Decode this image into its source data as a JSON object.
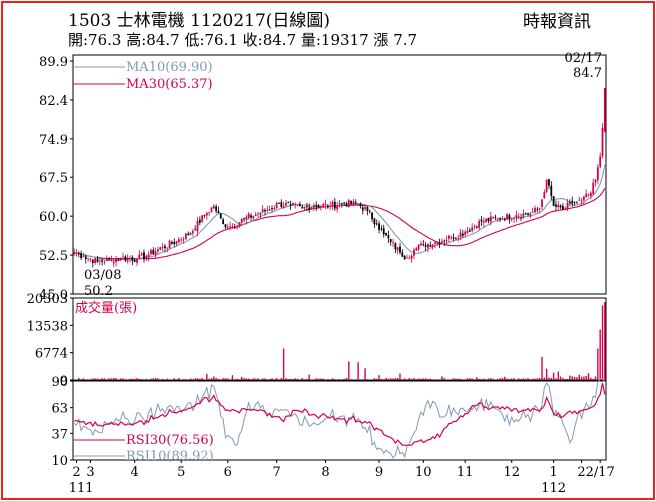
{
  "header": {
    "stock_code": "1503",
    "stock_name": "士林電機",
    "chart_date": "1120217(日線圖)",
    "source": "時報資訊",
    "stats": "開:76.3 高:84.7 低:76.1 收:84.7 量:19317 漲 7.7"
  },
  "colors": {
    "frame": "#e8231c",
    "up": "#d6004c",
    "down": "#000000",
    "ma10": "#7f9bb3",
    "ma30": "#d6004c",
    "volume": "#d6004c",
    "rsi30": "#d6004c",
    "rsi10": "#7f9bb3"
  },
  "chart_data": [
    {
      "type": "candlestick",
      "legend": [
        {
          "text": "MA10(69.90)",
          "color": "#7f9bb3"
        },
        {
          "text": "MA30(65.37)",
          "color": "#d6004c"
        }
      ],
      "yticks": [
        "89.9",
        "82.4",
        "74.9",
        "67.5",
        "60.0",
        "52.5",
        "45.0"
      ],
      "ylim": [
        45.0,
        89.9
      ],
      "annotations": [
        {
          "text": "02/17",
          "value": "84.7",
          "at": "last-high"
        },
        {
          "text": "03/08",
          "value": "50.2",
          "at": "low"
        }
      ],
      "anchors_close": [
        [
          0,
          53.0
        ],
        [
          4,
          52.3
        ],
        [
          10,
          51.2
        ],
        [
          15,
          51.6
        ],
        [
          20,
          52.0
        ],
        [
          27,
          51.8
        ],
        [
          32,
          52.6
        ],
        [
          38,
          54.0
        ],
        [
          44,
          55.2
        ],
        [
          50,
          56.8
        ],
        [
          56,
          60.2
        ],
        [
          60,
          62.0
        ],
        [
          64,
          58.5
        ],
        [
          68,
          58.0
        ],
        [
          73,
          59.5
        ],
        [
          78,
          60.3
        ],
        [
          83,
          61.2
        ],
        [
          88,
          62.4
        ],
        [
          93,
          62.0
        ],
        [
          98,
          61.5
        ],
        [
          103,
          62.1
        ],
        [
          110,
          62.0
        ],
        [
          116,
          62.5
        ],
        [
          122,
          62.3
        ],
        [
          126,
          61.0
        ],
        [
          130,
          58.5
        ],
        [
          133,
          56.5
        ],
        [
          136,
          55.0
        ],
        [
          140,
          53.0
        ],
        [
          143,
          52.0
        ],
        [
          146,
          53.5
        ],
        [
          150,
          54.5
        ],
        [
          156,
          55.0
        ],
        [
          162,
          56.0
        ],
        [
          168,
          57.0
        ],
        [
          175,
          59.0
        ],
        [
          182,
          59.6
        ],
        [
          190,
          60.2
        ],
        [
          196,
          60.5
        ],
        [
          200,
          61.5
        ],
        [
          203,
          67.0
        ],
        [
          206,
          62.0
        ],
        [
          210,
          61.3
        ],
        [
          214,
          62.5
        ],
        [
          218,
          63.0
        ],
        [
          222,
          64.5
        ],
        [
          224,
          67.0
        ],
        [
          226,
          71.5
        ],
        [
          227,
          77.0
        ],
        [
          228,
          84.7
        ]
      ],
      "ma10_last": 69.9,
      "ma30_last": 65.37
    },
    {
      "type": "bar",
      "title": "成交量(張)",
      "yticks": [
        "20303",
        "13538",
        "6774",
        "9"
      ],
      "ylim": [
        9,
        20303
      ],
      "spikes": [
        [
          57,
          1500
        ],
        [
          60,
          900
        ],
        [
          68,
          1200
        ],
        [
          72,
          800
        ],
        [
          90,
          7800
        ],
        [
          101,
          1300
        ],
        [
          118,
          4600
        ],
        [
          122,
          4400
        ],
        [
          125,
          2900
        ],
        [
          131,
          1200
        ],
        [
          140,
          1600
        ],
        [
          158,
          900
        ],
        [
          173,
          700
        ],
        [
          185,
          800
        ],
        [
          201,
          5700
        ],
        [
          203,
          2800
        ],
        [
          206,
          1800
        ],
        [
          208,
          2100
        ],
        [
          213,
          1100
        ],
        [
          217,
          1300
        ],
        [
          221,
          1700
        ],
        [
          225,
          7800
        ],
        [
          226,
          12500
        ],
        [
          227,
          18500
        ],
        [
          228,
          19317
        ]
      ]
    },
    {
      "type": "line",
      "legend": [
        {
          "text": "RSI30(76.56)",
          "color": "#d6004c"
        },
        {
          "text": "RSI10(89.92)",
          "color": "#7f9bb3"
        }
      ],
      "yticks": [
        "90",
        "63",
        "37",
        "10"
      ],
      "ylim": [
        10,
        90
      ],
      "rsi30_last": 76.56,
      "rsi10_last": 89.92
    }
  ],
  "xaxis": {
    "labels": [
      {
        "text": "2",
        "bar": 1
      },
      {
        "text": "3",
        "bar": 7
      },
      {
        "text": "4",
        "bar": 26
      },
      {
        "text": "5",
        "bar": 46
      },
      {
        "text": "6",
        "bar": 66
      },
      {
        "text": "7",
        "bar": 87
      },
      {
        "text": "8",
        "bar": 108
      },
      {
        "text": "9",
        "bar": 131
      },
      {
        "text": "10",
        "bar": 150
      },
      {
        "text": "11",
        "bar": 168
      },
      {
        "text": "12",
        "bar": 188
      },
      {
        "text": "1",
        "bar": 206
      },
      {
        "text": "2",
        "bar": 218
      },
      {
        "text": "2/17",
        "bar": 226
      }
    ],
    "year_labels": [
      {
        "text": "111",
        "bar": 3
      },
      {
        "text": "112",
        "bar": 206
      }
    ]
  }
}
